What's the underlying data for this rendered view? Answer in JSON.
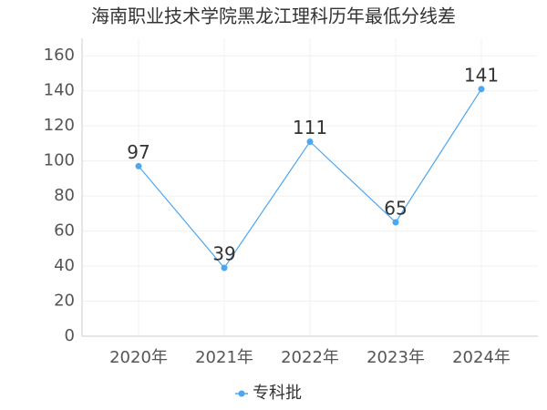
{
  "chart_data": {
    "type": "line",
    "title": "海南职业技术学院黑龙江理科历年最低分线差",
    "categories": [
      "2020年",
      "2021年",
      "2022年",
      "2023年",
      "2024年"
    ],
    "series": [
      {
        "name": "专科批",
        "color": "#4da6f0",
        "values": [
          97,
          39,
          111,
          65,
          141
        ]
      }
    ],
    "ylim": [
      0,
      170
    ],
    "yticks": [
      0,
      20,
      40,
      60,
      80,
      100,
      120,
      140,
      160
    ],
    "grid": true,
    "legend": "bottom"
  }
}
